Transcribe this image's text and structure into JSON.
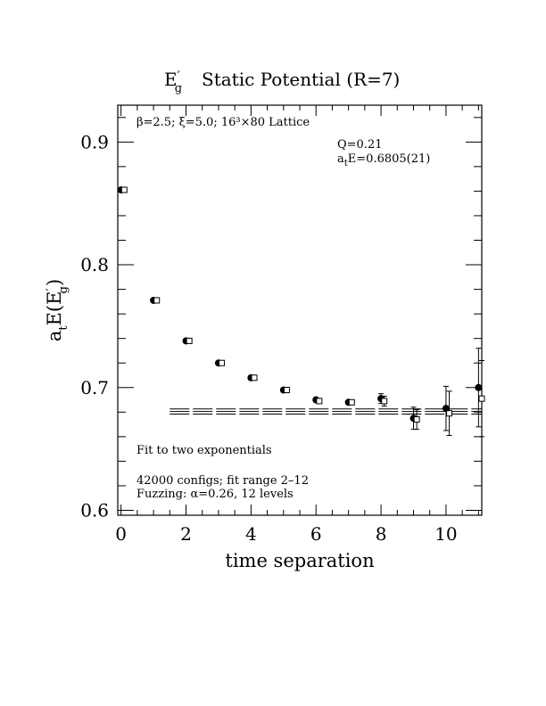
{
  "chart_data": {
    "type": "scatter",
    "title": "E'g  Static Potential (R=7)",
    "title_main": "E",
    "title_prime": "′",
    "title_sub": "g",
    "title_rest": "Static Potential (R=7)",
    "xlabel": "time separation",
    "ylabel": "a_t E(E'_g)",
    "ylabel_a": "a",
    "ylabel_t": "t",
    "ylabel_e": "E(E",
    "ylabel_prime": "′",
    "ylabel_g": "g",
    "ylabel_close": ")",
    "xlim": [
      -0.1,
      11.1
    ],
    "ylim": [
      0.596,
      0.93
    ],
    "x_ticks": [
      0,
      2,
      4,
      6,
      8,
      10
    ],
    "x_tick_labels": [
      "0",
      "2",
      "4",
      "6",
      "8",
      "10"
    ],
    "y_ticks": [
      0.6,
      0.7,
      0.8,
      0.9
    ],
    "y_tick_labels": [
      "0.6",
      "0.7",
      "0.8",
      "0.9"
    ],
    "grid": false,
    "series": [
      {
        "marker": "filled-circle",
        "x": [
          0,
          1,
          2,
          3,
          4,
          5,
          6,
          7,
          8,
          9,
          10,
          11
        ],
        "y": [
          0.861,
          0.771,
          0.738,
          0.72,
          0.708,
          0.698,
          0.69,
          0.688,
          0.691,
          0.675,
          0.683,
          0.7
        ],
        "err": [
          0.0005,
          0.0005,
          0.0005,
          0.0007,
          0.0008,
          0.001,
          0.0012,
          0.0015,
          0.004,
          0.009,
          0.018,
          0.032
        ]
      },
      {
        "marker": "open-square",
        "x": [
          0.1,
          1.1,
          2.1,
          3.1,
          4.1,
          5.1,
          6.1,
          7.1,
          8.1,
          9.1,
          10.1,
          11.1
        ],
        "y": [
          0.861,
          0.771,
          0.738,
          0.72,
          0.708,
          0.698,
          0.689,
          0.688,
          0.689,
          0.674,
          0.679,
          0.691
        ],
        "err": [
          0.0005,
          0.0005,
          0.0005,
          0.0007,
          0.0008,
          0.001,
          0.0012,
          0.0015,
          0.004,
          0.008,
          0.018,
          0.031
        ]
      }
    ],
    "fit": {
      "x_start": 1.5,
      "x_end": 11.1,
      "value": 0.6805,
      "error": 0.0021
    },
    "annotations": {
      "lattice": "β=2.5; ξ=5.0; 16³×80 Lattice",
      "q_value": "Q=0.21",
      "energy_prefix": "a",
      "energy_sub": "t",
      "energy_value": "E=0.6805(21)",
      "fit_method": "Fit to two exponentials",
      "configs": "42000 configs; fit range 2–12",
      "fuzzing": "Fuzzing: α=0.26, 12 levels"
    }
  }
}
